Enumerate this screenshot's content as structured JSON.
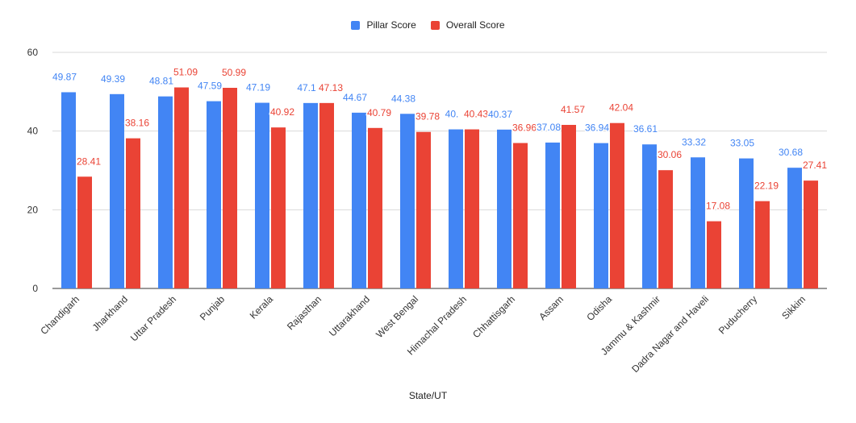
{
  "chart_data": {
    "type": "bar",
    "xlabel": "State/UT",
    "ylabel": "",
    "ylim": [
      0,
      60
    ],
    "yticks": [
      0,
      20,
      40,
      60
    ],
    "grid": true,
    "legend_position": "top-center",
    "categories": [
      "Chandigarh",
      "Jharkhand",
      "Uttar Pradesh",
      "Punjab",
      "Kerala",
      "Rajasthan",
      "Uttarakhand",
      "West Bengal",
      "Himachal Pradesh",
      "Chhattisgarh",
      "Assam",
      "Odisha",
      "Jammu & Kashmir",
      "Dadra Nagar and Haveli",
      "Puducherry",
      "Sikkim"
    ],
    "series": [
      {
        "name": "Pillar Score",
        "color": "#4285f4",
        "values": [
          49.87,
          49.39,
          48.81,
          47.59,
          47.19,
          47.13,
          44.67,
          44.38,
          40.43,
          40.37,
          37.08,
          36.94,
          36.61,
          33.32,
          33.05,
          30.68
        ],
        "labels": [
          "49.87",
          "49.39",
          "48.81",
          "47.59",
          "47.19",
          "47.1",
          "44.67",
          "44.38",
          "40.",
          "40.37",
          "37.08",
          "36.94",
          "36.61",
          "33.32",
          "33.05",
          "30.68"
        ]
      },
      {
        "name": "Overall Score",
        "color": "#ea4335",
        "values": [
          28.41,
          38.16,
          51.09,
          50.99,
          40.92,
          47.13,
          40.79,
          39.78,
          40.43,
          36.96,
          41.57,
          42.04,
          30.06,
          17.08,
          22.19,
          27.41
        ],
        "labels": [
          "28.41",
          "38.16",
          "51.09",
          "50.99",
          "40.92",
          "47.13",
          "40.79",
          "39.78",
          "40.43",
          "36.96",
          "41.57",
          "42.04",
          "30.06",
          "17.08",
          "22.19",
          "27.41"
        ]
      }
    ]
  }
}
